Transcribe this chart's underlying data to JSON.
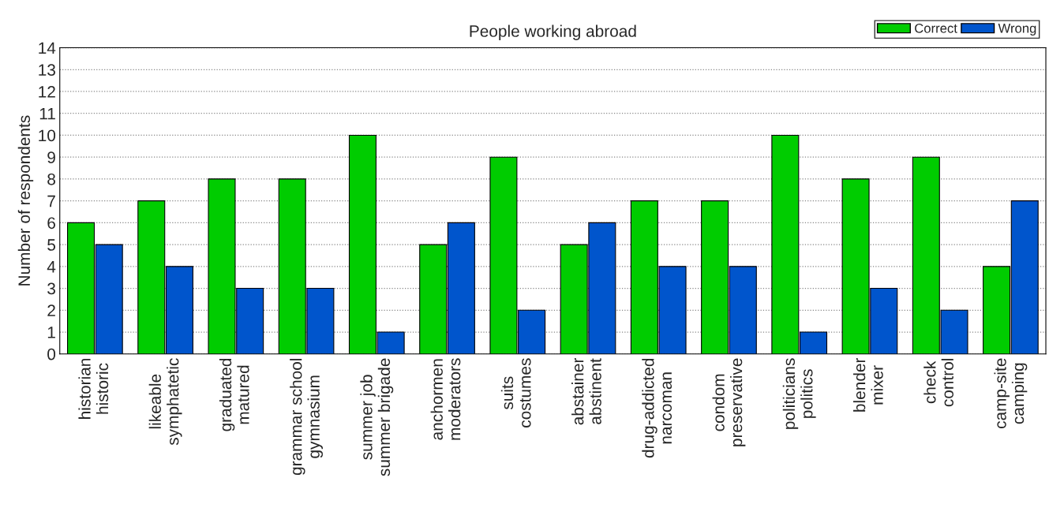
{
  "chart_data": {
    "type": "bar",
    "title": "People working abroad",
    "ylabel": "Number of respondents",
    "categories": [
      "historian\nhistoric",
      "likeable\nsymphatetic",
      "graduated\nmatured",
      "grammar school\ngymnasium",
      "summer job\nsummer brigade",
      "anchormen\nmoderators",
      "suits\ncostumes",
      "abstainer\nabstinent",
      "drug-addicted\nnarcoman",
      "condom\npreservative",
      "politicians\npolitics",
      "blender\nmixer",
      "check\ncontrol",
      "camp-site\ncamping"
    ],
    "series": [
      {
        "name": "Correct",
        "color": "#00cc00",
        "values": [
          6,
          7,
          8,
          8,
          10,
          5,
          9,
          5,
          7,
          7,
          10,
          8,
          9,
          4
        ]
      },
      {
        "name": "Wrong",
        "color": "#0055cc",
        "values": [
          5,
          4,
          3,
          3,
          1,
          6,
          2,
          6,
          4,
          4,
          1,
          3,
          2,
          7
        ]
      }
    ],
    "ylim": [
      0,
      14
    ],
    "yticks": [
      0,
      1,
      2,
      3,
      4,
      5,
      6,
      7,
      8,
      9,
      10,
      11,
      12,
      13,
      14
    ],
    "grid": "y",
    "legend": "top right"
  }
}
